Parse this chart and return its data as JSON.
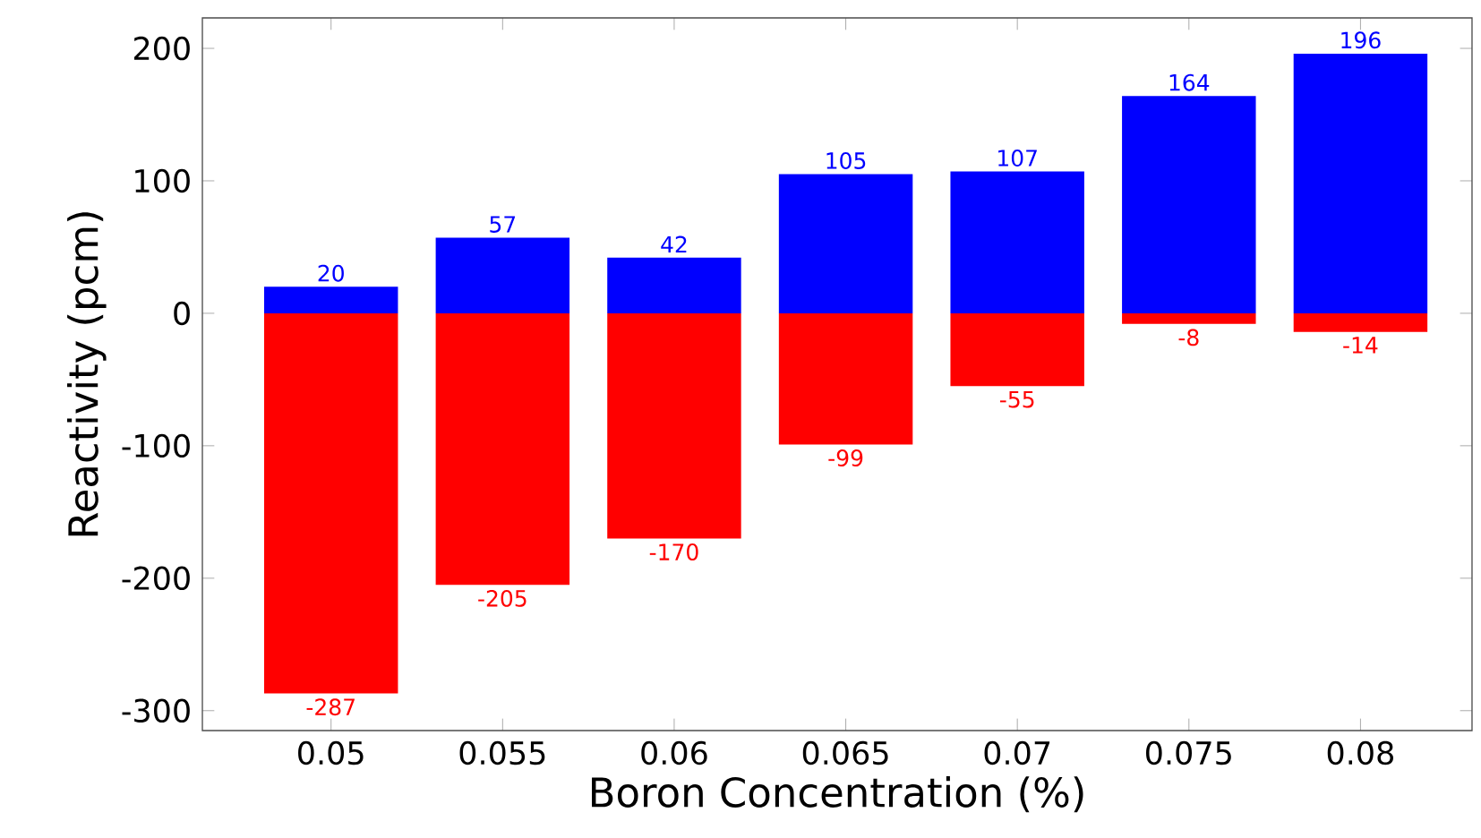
{
  "chart_data": {
    "type": "bar",
    "xlabel": "Boron Concentration (%)",
    "ylabel": "Reactivity (pcm)",
    "categories": [
      "0.05",
      "0.055",
      "0.06",
      "0.065",
      "0.07",
      "0.075",
      "0.08"
    ],
    "series": [
      {
        "color": "#0000ff",
        "values": [
          20,
          57,
          42,
          105,
          107,
          164,
          196
        ]
      },
      {
        "color": "#ff0000",
        "values": [
          -287,
          -205,
          -170,
          -99,
          -55,
          -8,
          -14
        ]
      }
    ],
    "ylim": [
      -315,
      223
    ],
    "yticks": [
      -300,
      -200,
      -100,
      0,
      100,
      200
    ],
    "data_labels": true,
    "stacked": true
  }
}
